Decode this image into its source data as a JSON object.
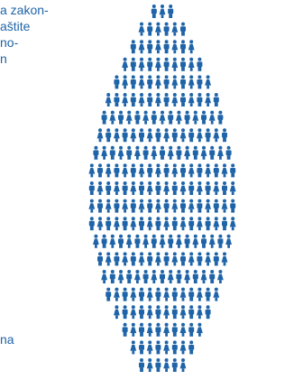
{
  "colors": {
    "figure": "#1f64a8",
    "text": "#1f64a8",
    "background": "#ffffff"
  },
  "fragments": {
    "top_lines": [
      "a zakon-",
      "aštite",
      "no-",
      "n"
    ],
    "bottom_text": "na"
  },
  "graphic": {
    "icon": "person-icon",
    "shape": "drop",
    "rows": [
      3,
      6,
      8,
      10,
      12,
      14,
      15,
      16,
      17,
      18,
      18,
      18,
      18,
      17,
      16,
      15,
      14,
      12,
      10,
      8,
      6
    ]
  }
}
